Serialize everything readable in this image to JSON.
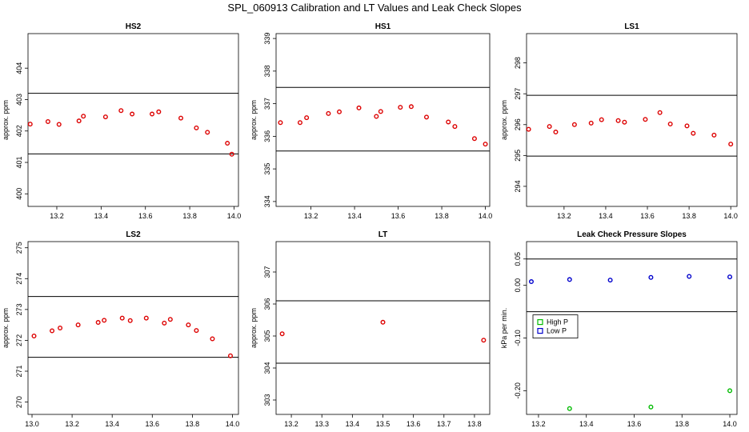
{
  "page_title": "SPL_060913  Calibration and LT Values and Leak Check Slopes",
  "chart_data": [
    {
      "id": "hs2",
      "type": "scatter",
      "title": "HS2",
      "ylabel": "approx. ppm",
      "xlim": [
        13.07,
        14.02
      ],
      "ylim": [
        399.6,
        405.1
      ],
      "xticks": [
        13.2,
        13.4,
        13.6,
        13.8,
        14.0
      ],
      "xtick_labels": [
        "13.2",
        "13.4",
        "13.6",
        "13.8",
        "14.0"
      ],
      "yticks": [
        400,
        401,
        402,
        403,
        404
      ],
      "ytick_labels": [
        "400",
        "401",
        "402",
        "403",
        "404"
      ],
      "hlines": [
        403.2,
        401.27
      ],
      "series": [
        {
          "name": "values",
          "color": "#dd0000",
          "x": [
            13.08,
            13.16,
            13.21,
            13.3,
            13.32,
            13.42,
            13.49,
            13.54,
            13.63,
            13.66,
            13.76,
            13.83,
            13.88,
            13.97,
            13.99
          ],
          "y": [
            402.22,
            402.3,
            402.21,
            402.32,
            402.47,
            402.45,
            402.65,
            402.54,
            402.54,
            402.61,
            402.41,
            402.1,
            401.96,
            401.61,
            401.26
          ]
        }
      ]
    },
    {
      "id": "hs1",
      "type": "scatter",
      "title": "HS1",
      "ylabel": "approx. ppm",
      "xlim": [
        13.04,
        14.02
      ],
      "ylim": [
        333.85,
        339.15
      ],
      "xticks": [
        13.2,
        13.4,
        13.6,
        13.8,
        14.0
      ],
      "xtick_labels": [
        "13.2",
        "13.4",
        "13.6",
        "13.8",
        "14.0"
      ],
      "yticks": [
        334,
        335,
        336,
        337,
        338,
        339
      ],
      "ytick_labels": [
        "334",
        "335",
        "336",
        "337",
        "338",
        "339"
      ],
      "hlines": [
        337.5,
        335.55
      ],
      "series": [
        {
          "name": "values",
          "color": "#dd0000",
          "x": [
            13.06,
            13.15,
            13.18,
            13.28,
            13.33,
            13.42,
            13.5,
            13.52,
            13.61,
            13.66,
            13.73,
            13.83,
            13.86,
            13.95,
            14.0
          ],
          "y": [
            336.42,
            336.42,
            336.57,
            336.7,
            336.75,
            336.87,
            336.61,
            336.76,
            336.89,
            336.91,
            336.59,
            336.44,
            336.3,
            335.93,
            335.76
          ]
        }
      ]
    },
    {
      "id": "ls1",
      "type": "scatter",
      "title": "LS1",
      "ylabel": "approx. ppm",
      "xlim": [
        13.02,
        14.03
      ],
      "ylim": [
        293.35,
        298.95
      ],
      "xticks": [
        13.2,
        13.4,
        13.6,
        13.8,
        14.0
      ],
      "xtick_labels": [
        "13.2",
        "13.4",
        "13.6",
        "13.8",
        "14.0"
      ],
      "yticks": [
        294,
        295,
        296,
        297,
        298
      ],
      "ytick_labels": [
        "294",
        "295",
        "296",
        "297",
        "298"
      ],
      "hlines": [
        296.95,
        294.98
      ],
      "series": [
        {
          "name": "values",
          "color": "#dd0000",
          "x": [
            13.03,
            13.13,
            13.16,
            13.25,
            13.33,
            13.38,
            13.46,
            13.49,
            13.59,
            13.66,
            13.71,
            13.79,
            13.82,
            13.92,
            14.0
          ],
          "y": [
            295.85,
            295.94,
            295.76,
            296.0,
            296.05,
            296.16,
            296.13,
            296.08,
            296.17,
            296.39,
            296.02,
            295.96,
            295.72,
            295.66,
            295.37
          ]
        }
      ]
    },
    {
      "id": "ls2",
      "type": "scatter",
      "title": "LS2",
      "ylabel": "approx. ppm",
      "xlim": [
        12.98,
        14.03
      ],
      "ylim": [
        269.6,
        275.2
      ],
      "xticks": [
        13.0,
        13.2,
        13.4,
        13.6,
        13.8,
        14.0
      ],
      "xtick_labels": [
        "13.0",
        "13.2",
        "13.4",
        "13.6",
        "13.8",
        "14.0"
      ],
      "yticks": [
        270,
        271,
        272,
        273,
        274,
        275
      ],
      "ytick_labels": [
        "270",
        "271",
        "272",
        "273",
        "274",
        "275"
      ],
      "hlines": [
        273.42,
        271.45
      ],
      "series": [
        {
          "name": "values",
          "color": "#dd0000",
          "x": [
            13.01,
            13.1,
            13.14,
            13.23,
            13.33,
            13.36,
            13.45,
            13.49,
            13.57,
            13.66,
            13.69,
            13.78,
            13.82,
            13.9,
            13.99
          ],
          "y": [
            272.14,
            272.31,
            272.4,
            272.5,
            272.58,
            272.65,
            272.72,
            272.64,
            272.72,
            272.56,
            272.68,
            272.5,
            272.32,
            272.05,
            271.5
          ]
        }
      ]
    },
    {
      "id": "lt",
      "type": "scatter",
      "title": "LT",
      "ylabel": "approx. ppm",
      "xlim": [
        13.15,
        13.85
      ],
      "ylim": [
        302.55,
        307.95
      ],
      "xticks": [
        13.2,
        13.3,
        13.4,
        13.5,
        13.6,
        13.7,
        13.8
      ],
      "xtick_labels": [
        "13.2",
        "13.3",
        "13.4",
        "13.5",
        "13.6",
        "13.7",
        "13.8"
      ],
      "yticks": [
        303,
        304,
        305,
        306,
        307
      ],
      "ytick_labels": [
        "303",
        "304",
        "305",
        "306",
        "307"
      ],
      "hlines": [
        306.1,
        304.15
      ],
      "series": [
        {
          "name": "values",
          "color": "#dd0000",
          "x": [
            13.17,
            13.5,
            13.83
          ],
          "y": [
            305.07,
            305.43,
            304.87
          ]
        }
      ]
    },
    {
      "id": "leak",
      "type": "scatter",
      "title": "Leak Check Pressure Slopes",
      "ylabel": "kPa per min.",
      "xlim": [
        13.15,
        14.03
      ],
      "ylim": [
        -0.245,
        0.083
      ],
      "xticks": [
        13.2,
        13.4,
        13.6,
        13.8,
        14.0
      ],
      "xtick_labels": [
        "13.2",
        "13.4",
        "13.6",
        "13.8",
        "14.0"
      ],
      "yticks": [
        -0.2,
        -0.1,
        0.0,
        0.05
      ],
      "ytick_labels": [
        "-0.20",
        "-0.10",
        "0.00",
        "0.05"
      ],
      "hlines": [
        0.05,
        -0.05
      ],
      "legend": {
        "position": "left",
        "entries": [
          {
            "label": "High P",
            "color": "#00bb00"
          },
          {
            "label": "Low P",
            "color": "#0000cc"
          }
        ]
      },
      "series": [
        {
          "name": "High P",
          "color": "#00bb00",
          "x": [
            13.33,
            13.67,
            14.0
          ],
          "y": [
            -0.234,
            -0.231,
            -0.2
          ]
        },
        {
          "name": "Low P",
          "color": "#0000cc",
          "x": [
            13.17,
            13.33,
            13.5,
            13.67,
            13.83,
            14.0
          ],
          "y": [
            0.007,
            0.011,
            0.01,
            0.015,
            0.017,
            0.016
          ]
        }
      ]
    }
  ]
}
